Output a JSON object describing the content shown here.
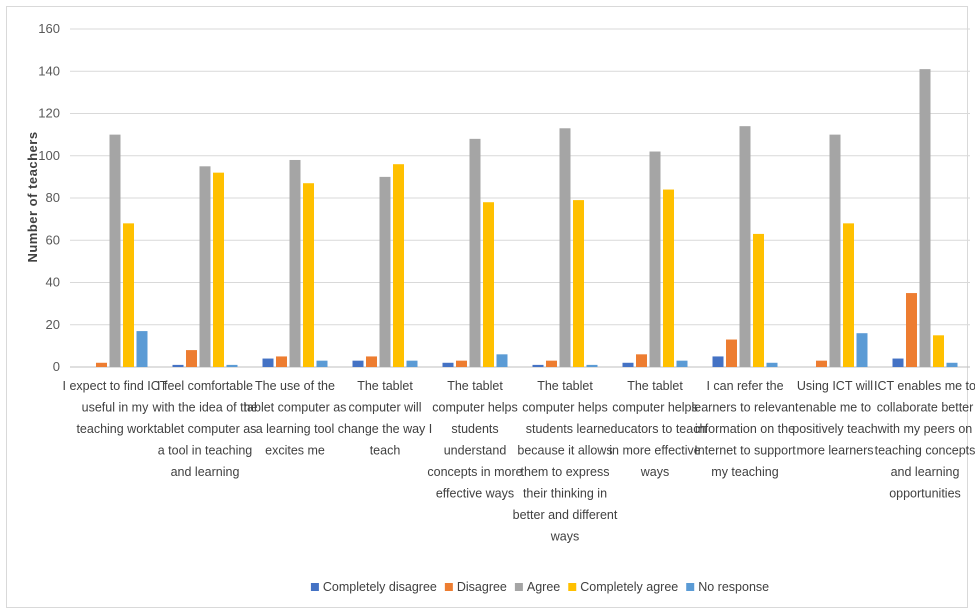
{
  "chart_data": {
    "type": "bar",
    "ylabel": "Number of teachers",
    "xlabel": "",
    "ylim": [
      0,
      160
    ],
    "yticks": [
      0,
      20,
      40,
      60,
      80,
      100,
      120,
      140,
      160
    ],
    "grid": true,
    "legend_position": "bottom",
    "categories": [
      "I expect to find ICT useful in my teaching work",
      "I feel comfortable with the idea of the tablet computer as a tool in teaching and learning",
      "The use of the tablet computer as a learning tool excites me",
      "The tablet computer will change the way I teach",
      "The tablet computer helps students understand concepts in more effective ways",
      "The tablet computer helps students learn because it allows them to express their thinking in better and different ways",
      "The tablet computer helps educators to teach in more effective ways",
      "I can refer the learners to relevant information on the Internet to support my teaching",
      "Using ICT will enable me to positively teach more learners",
      "ICT enables me to collaborate better with my peers on teaching concepts and learning opportunities"
    ],
    "category_lines": [
      [
        "I expect to find ICT",
        "useful in my",
        "teaching work"
      ],
      [
        "I feel comfortable",
        "with the idea of the",
        "tablet computer as",
        "a tool in teaching",
        "and learning"
      ],
      [
        "The use of the",
        "tablet computer as",
        "a learning tool",
        "excites me"
      ],
      [
        "The tablet",
        "computer will",
        "change the way I",
        "teach"
      ],
      [
        "The tablet",
        "computer helps",
        "students",
        "understand",
        "concepts in more",
        "effective ways"
      ],
      [
        "The tablet",
        "computer helps",
        "students learn",
        "because it allows",
        "them to express",
        "their thinking in",
        "better and different",
        "ways"
      ],
      [
        "The tablet",
        "computer helps",
        "educators to teach",
        "in more effective",
        "ways"
      ],
      [
        "I can refer the",
        "learners to relevant",
        "information on the",
        "Internet to support",
        "my teaching"
      ],
      [
        "Using ICT will",
        "enable me to",
        "positively teach",
        "more learners"
      ],
      [
        "ICT enables me to",
        "collaborate better",
        "with my peers on",
        "teaching concepts",
        "and learning",
        "opportunities"
      ]
    ],
    "series": [
      {
        "name": "Completely disagree",
        "color": "#4472c4",
        "values": [
          0,
          1,
          4,
          3,
          2,
          1,
          2,
          5,
          0,
          4
        ]
      },
      {
        "name": "Disagree",
        "color": "#ed7d31",
        "values": [
          2,
          8,
          5,
          5,
          3,
          3,
          6,
          13,
          3,
          35
        ]
      },
      {
        "name": "Agree",
        "color": "#a5a5a5",
        "values": [
          110,
          95,
          98,
          90,
          108,
          113,
          102,
          114,
          110,
          141
        ]
      },
      {
        "name": "Completely agree",
        "color": "#ffc000",
        "values": [
          68,
          92,
          87,
          96,
          78,
          79,
          84,
          63,
          68,
          15
        ]
      },
      {
        "name": "No response",
        "color": "#5b9bd5",
        "values": [
          17,
          1,
          3,
          3,
          6,
          1,
          3,
          2,
          16,
          2
        ]
      }
    ]
  }
}
